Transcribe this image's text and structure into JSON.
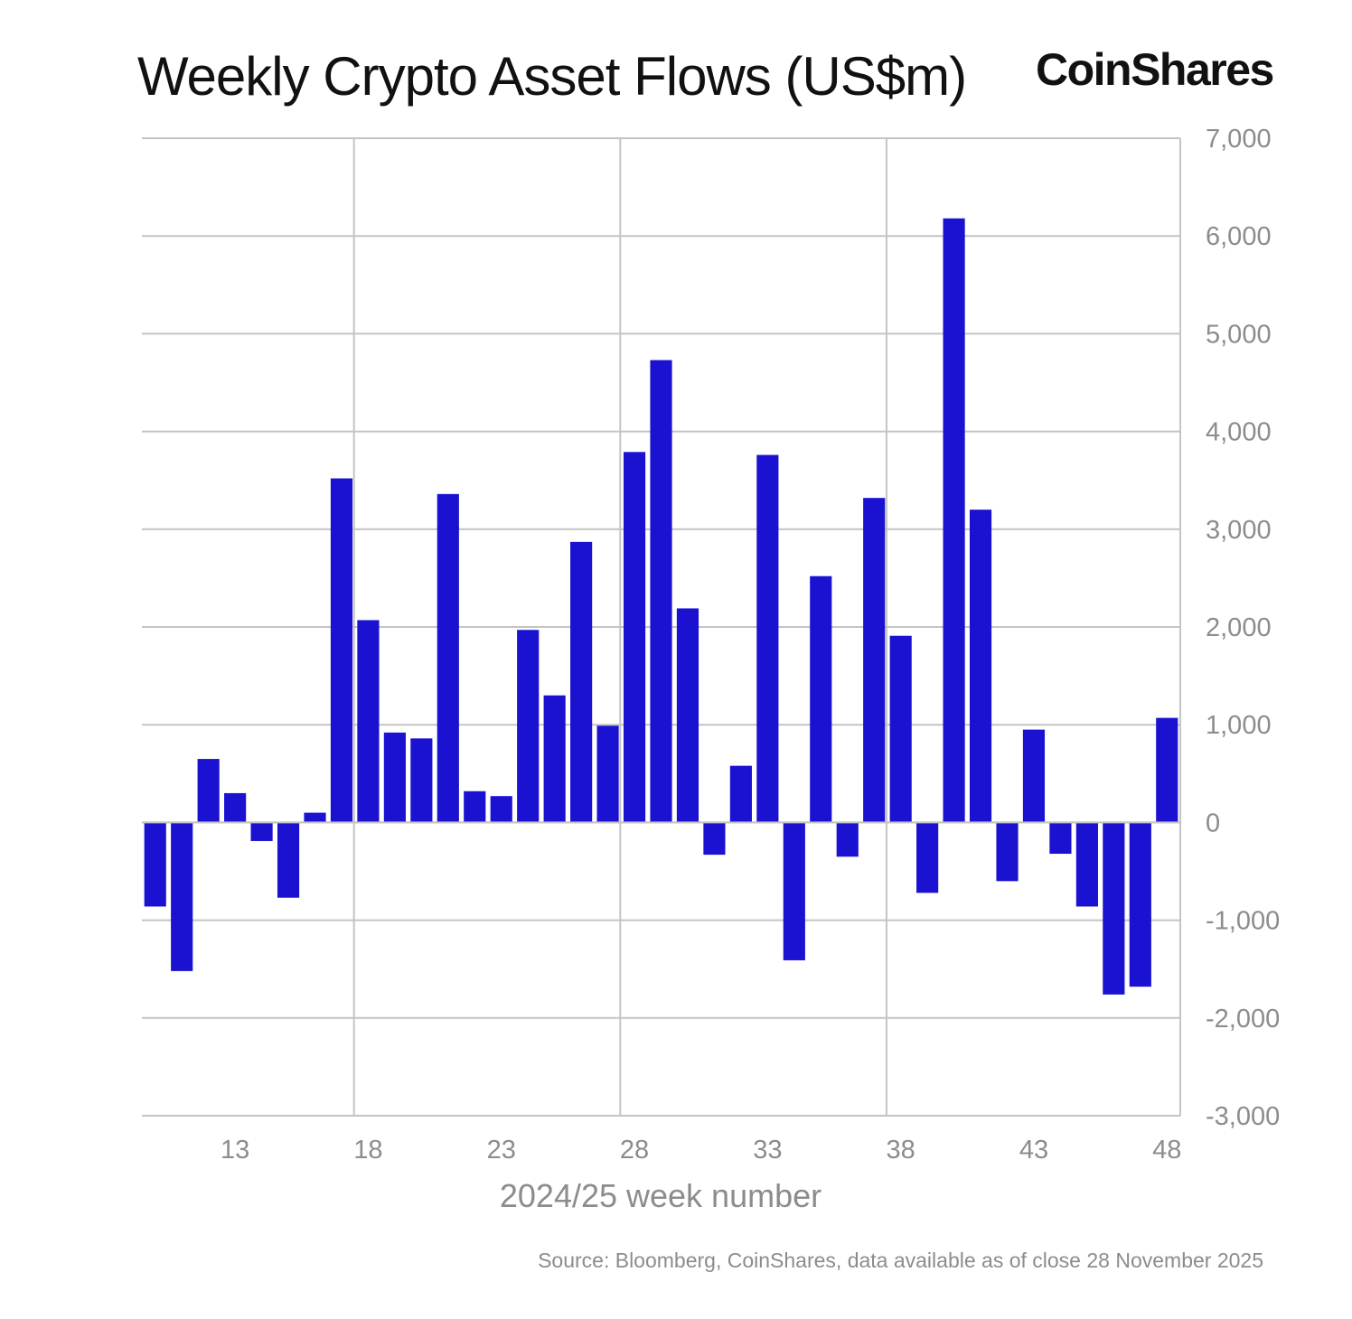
{
  "header": {
    "title": "Weekly Crypto Asset Flows (US$m)",
    "brand": "CoinShares"
  },
  "footer": {
    "source": "Source: Bloomberg, CoinShares, data available as of close 28 November 2025"
  },
  "colors": {
    "bar": "#1a12d0",
    "grid": "#c4c4c4",
    "axis_text": "#8c8c8c"
  },
  "chart_data": {
    "type": "bar",
    "title": "Weekly Crypto Asset Flows (US$m)",
    "xlabel": "2024/25 week number",
    "ylabel": "",
    "ylim": [
      -3000,
      7000
    ],
    "y_ticks": [
      7000,
      6000,
      5000,
      4000,
      3000,
      2000,
      1000,
      0,
      -1000,
      -2000,
      -3000
    ],
    "y_tick_labels": [
      "7,000",
      "6,000",
      "5,000",
      "4,000",
      "3,000",
      "2,000",
      "1,000",
      "0",
      "-1,000",
      "-2,000",
      "-3,000"
    ],
    "categories": [
      10,
      11,
      12,
      13,
      14,
      15,
      16,
      17,
      18,
      19,
      20,
      21,
      22,
      23,
      24,
      25,
      26,
      27,
      28,
      29,
      30,
      31,
      32,
      33,
      34,
      35,
      36,
      37,
      38,
      39,
      40,
      41,
      42,
      43,
      44,
      45,
      46,
      47,
      48
    ],
    "x_tick_labels": [
      "13",
      "18",
      "23",
      "28",
      "33",
      "38",
      "43",
      "48"
    ],
    "x_ticks": [
      13,
      18,
      23,
      28,
      33,
      38,
      43,
      48
    ],
    "vertical_gridlines_at": [
      18,
      28,
      38
    ],
    "values": [
      -860,
      -1520,
      650,
      300,
      -190,
      -770,
      100,
      3520,
      2070,
      920,
      860,
      3360,
      320,
      270,
      1970,
      1300,
      2870,
      990,
      3790,
      4730,
      2190,
      -330,
      580,
      3760,
      -1410,
      2520,
      -350,
      3320,
      1910,
      -720,
      6180,
      3200,
      -600,
      950,
      -320,
      -860,
      -1760,
      -1680,
      1070
    ],
    "grid": true,
    "legend": "none"
  }
}
